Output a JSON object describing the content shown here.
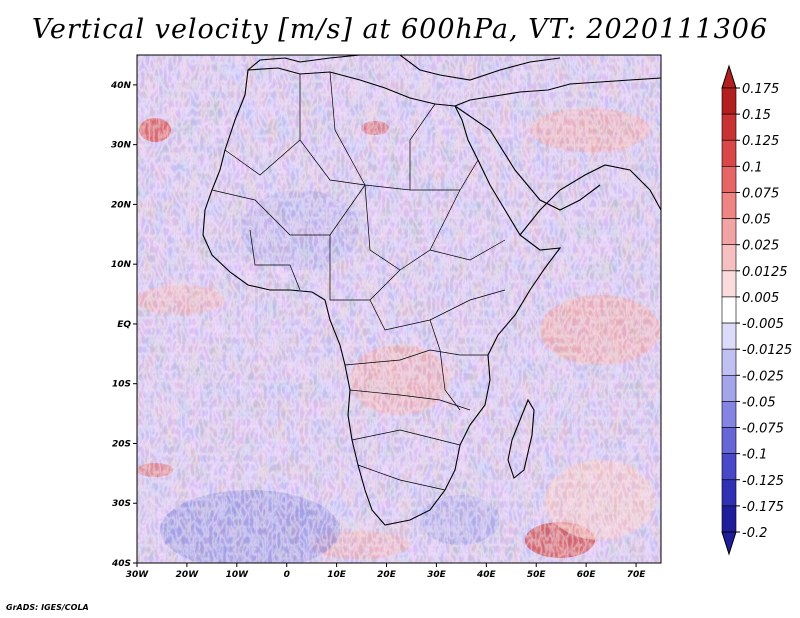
{
  "title": "Vertical velocity [m/s] at 600hPa, VT: 2020111306",
  "credit": "GrADS: IGES/COLA",
  "map": {
    "region": "Africa",
    "lon_range": [
      -30,
      75
    ],
    "lat_range": [
      -40,
      45
    ],
    "lon_ticks": [
      "30W",
      "20W",
      "10W",
      "0",
      "10E",
      "20E",
      "30E",
      "40E",
      "50E",
      "60E",
      "70E"
    ],
    "lat_ticks": [
      "40N",
      "30N",
      "20N",
      "10N",
      "EQ",
      "10S",
      "20S",
      "30S",
      "40S"
    ]
  },
  "colorbar": {
    "labels": [
      "0.175",
      "0.15",
      "0.125",
      "0.1",
      "0.075",
      "0.05",
      "0.025",
      "0.0125",
      "0.005",
      "-0.005",
      "-0.0125",
      "-0.025",
      "-0.05",
      "-0.075",
      "-0.1",
      "-0.125",
      "-0.175",
      "-0.2"
    ],
    "colors": [
      "#b31e1e",
      "#c83232",
      "#d94848",
      "#e66666",
      "#ee8484",
      "#f2a4a4",
      "#f6c0c0",
      "#fadcdc",
      "#ffffff",
      "#ffffff",
      "#dcdcfa",
      "#c0c0f2",
      "#a4a4ea",
      "#8484e2",
      "#6666d8",
      "#4848c8",
      "#3030b4",
      "#1e1e9a"
    ]
  }
}
